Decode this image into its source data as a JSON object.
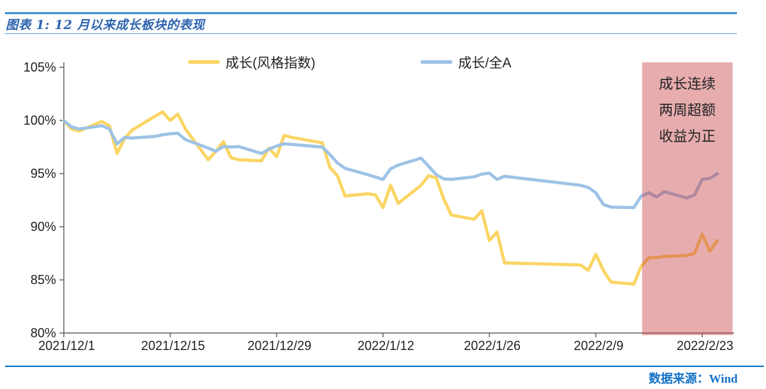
{
  "header": {
    "title": "图表 1: 12 月以来成长板块的表现"
  },
  "footer": {
    "source_label": "数据来源：Wind"
  },
  "chart_data": {
    "type": "line",
    "title": "图表 1: 12 月以来成长板块的表现",
    "grid": false,
    "legend_position": "top",
    "x_axis": {
      "start_date": "2021/12/1",
      "tick_labels": [
        "2021/12/1",
        "2021/12/15",
        "2021/12/29",
        "2022/1/12",
        "2022/1/26",
        "2022/2/9",
        "2022/2/23"
      ],
      "tick_days": [
        0,
        14,
        28,
        42,
        56,
        70,
        84
      ]
    },
    "y_axis": {
      "unit": "%",
      "ylim": [
        80,
        105
      ],
      "tick_values": [
        105,
        100,
        95,
        90,
        85,
        80
      ],
      "tick_labels": [
        "105%",
        "100%",
        "95%",
        "90%",
        "85%",
        "80%"
      ]
    },
    "axis_color": "#6b6b6b",
    "label_color": "#1f1f1f",
    "series": [
      {
        "name": "成长(风格指数)",
        "color": "#FBD564",
        "points": [
          [
            0,
            100.0
          ],
          [
            1,
            99.2
          ],
          [
            2,
            99.0
          ],
          [
            5,
            99.9
          ],
          [
            6,
            99.5
          ],
          [
            7,
            96.9
          ],
          [
            8,
            98.3
          ],
          [
            9,
            99.1
          ],
          [
            12,
            100.4
          ],
          [
            13,
            100.8
          ],
          [
            14,
            100.0
          ],
          [
            15,
            100.6
          ],
          [
            16,
            99.2
          ],
          [
            19,
            96.3
          ],
          [
            20,
            97.1
          ],
          [
            21,
            98.0
          ],
          [
            22,
            96.5
          ],
          [
            23,
            96.3
          ],
          [
            26,
            96.2
          ],
          [
            27,
            97.4
          ],
          [
            28,
            96.6
          ],
          [
            29,
            98.6
          ],
          [
            30,
            98.4
          ],
          [
            34,
            97.9
          ],
          [
            35,
            95.6
          ],
          [
            36,
            94.8
          ],
          [
            37,
            92.9
          ],
          [
            40,
            93.1
          ],
          [
            41,
            93.0
          ],
          [
            42,
            91.8
          ],
          [
            43,
            93.9
          ],
          [
            44,
            92.2
          ],
          [
            47,
            93.9
          ],
          [
            48,
            94.8
          ],
          [
            49,
            94.6
          ],
          [
            50,
            92.6
          ],
          [
            51,
            91.1
          ],
          [
            54,
            90.7
          ],
          [
            55,
            91.5
          ],
          [
            56,
            88.7
          ],
          [
            57,
            89.5
          ],
          [
            58,
            86.6
          ],
          [
            68,
            86.4
          ],
          [
            69,
            85.9
          ],
          [
            70,
            87.4
          ],
          [
            71,
            85.9
          ],
          [
            72,
            84.8
          ],
          [
            75,
            84.6
          ],
          [
            76,
            86.3
          ],
          [
            77,
            87.1
          ],
          [
            78,
            87.1
          ],
          [
            79,
            87.2
          ],
          [
            82,
            87.3
          ],
          [
            83,
            87.5
          ],
          [
            84,
            89.3
          ],
          [
            85,
            87.7
          ],
          [
            86,
            88.7
          ]
        ]
      },
      {
        "name": "成长/全A",
        "color": "#9DC3E6",
        "points": [
          [
            0,
            100.0
          ],
          [
            1,
            99.4
          ],
          [
            2,
            99.2
          ],
          [
            5,
            99.5
          ],
          [
            6,
            99.2
          ],
          [
            7,
            97.8
          ],
          [
            8,
            98.4
          ],
          [
            9,
            98.35
          ],
          [
            12,
            98.5
          ],
          [
            13,
            98.65
          ],
          [
            14,
            98.75
          ],
          [
            15,
            98.8
          ],
          [
            16,
            98.2
          ],
          [
            19,
            97.4
          ],
          [
            20,
            97.1
          ],
          [
            21,
            97.55
          ],
          [
            22,
            97.5
          ],
          [
            23,
            97.55
          ],
          [
            26,
            96.9
          ],
          [
            27,
            97.3
          ],
          [
            28,
            97.6
          ],
          [
            29,
            97.8
          ],
          [
            30,
            97.75
          ],
          [
            34,
            97.5
          ],
          [
            35,
            96.8
          ],
          [
            36,
            96.0
          ],
          [
            37,
            95.5
          ],
          [
            40,
            94.9
          ],
          [
            41,
            94.67
          ],
          [
            42,
            94.45
          ],
          [
            43,
            95.45
          ],
          [
            44,
            95.8
          ],
          [
            47,
            96.45
          ],
          [
            48,
            95.7
          ],
          [
            49,
            94.9
          ],
          [
            50,
            94.5
          ],
          [
            51,
            94.45
          ],
          [
            54,
            94.7
          ],
          [
            55,
            94.95
          ],
          [
            56,
            95.05
          ],
          [
            57,
            94.45
          ],
          [
            58,
            94.75
          ],
          [
            68,
            93.9
          ],
          [
            69,
            93.7
          ],
          [
            70,
            93.2
          ],
          [
            71,
            92.1
          ],
          [
            72,
            91.85
          ],
          [
            75,
            91.8
          ],
          [
            76,
            92.9
          ],
          [
            77,
            93.2
          ],
          [
            78,
            92.8
          ],
          [
            79,
            93.3
          ],
          [
            82,
            92.7
          ],
          [
            83,
            93.0
          ],
          [
            84,
            94.45
          ],
          [
            85,
            94.55
          ],
          [
            86,
            95.0
          ]
        ]
      }
    ],
    "highlight_region": {
      "label_lines": [
        "成长连续",
        "两周超额",
        "收益为正"
      ],
      "start_day": 76.1,
      "end_day": 88.0,
      "fill_color": "rgba(197,57,62,0.42)"
    }
  }
}
